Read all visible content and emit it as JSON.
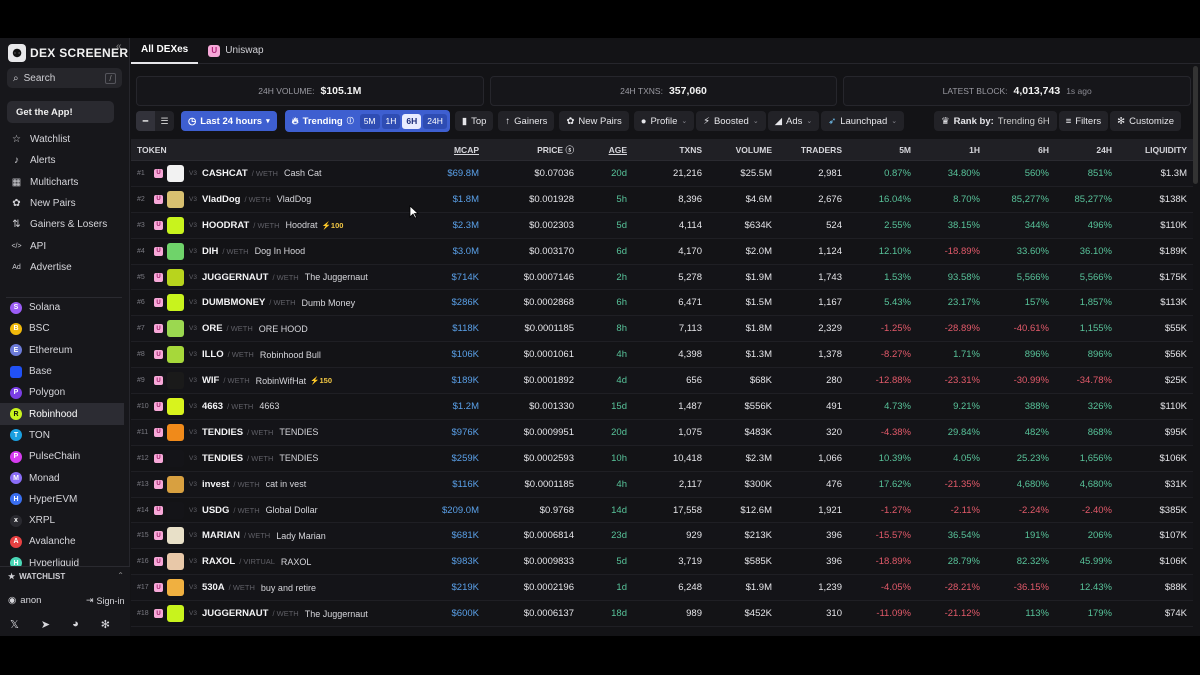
{
  "brand": {
    "logo_text": "DEX SCREENER"
  },
  "sidebar": {
    "search_label": "Search",
    "search_shortcut": "/",
    "get_app_label": "Get the App!",
    "nav": [
      {
        "label": "Watchlist",
        "icon": "star-icon"
      },
      {
        "label": "Alerts",
        "icon": "bell-icon"
      },
      {
        "label": "Multicharts",
        "icon": "grid-icon"
      },
      {
        "label": "New Pairs",
        "icon": "sprout-icon"
      },
      {
        "label": "Gainers & Losers",
        "icon": "trend-icon"
      },
      {
        "label": "API",
        "icon": "code-icon"
      },
      {
        "label": "Advertise",
        "icon": "ad-icon"
      }
    ],
    "chains": [
      {
        "label": "Solana",
        "color": "#9b5cf6",
        "glyph": "S"
      },
      {
        "label": "BSC",
        "color": "#f0b90b",
        "glyph": "B"
      },
      {
        "label": "Ethereum",
        "color": "#6c7bd8",
        "glyph": "E"
      },
      {
        "label": "Base",
        "color": "#2151f5",
        "glyph": ""
      },
      {
        "label": "Polygon",
        "color": "#7b3fe4",
        "glyph": "P"
      },
      {
        "label": "Robinhood",
        "color": "#c8f31d",
        "glyph": "R"
      },
      {
        "label": "TON",
        "color": "#1a9fe0",
        "glyph": "T"
      },
      {
        "label": "PulseChain",
        "color": "#d63cf0",
        "glyph": "P"
      },
      {
        "label": "Monad",
        "color": "#8a6df7",
        "glyph": "M"
      },
      {
        "label": "HyperEVM",
        "color": "#3a6ff0",
        "glyph": "H"
      },
      {
        "label": "XRPL",
        "color": "#2a2a30",
        "glyph": "x"
      },
      {
        "label": "Avalanche",
        "color": "#e84142",
        "glyph": "A"
      },
      {
        "label": "Hyperliquid",
        "color": "#4ad6b6",
        "glyph": "H"
      }
    ],
    "active_chain": "Robinhood",
    "watchlist_title": "WATCHLIST",
    "user": "anon",
    "sign_in": "Sign-in"
  },
  "tabs": [
    {
      "label": "All DEXes",
      "active": true
    },
    {
      "label": "Uniswap",
      "active": false
    }
  ],
  "stats": {
    "volume_label": "24H VOLUME:",
    "volume_value": "$105.1M",
    "txns_label": "24H TXNS:",
    "txns_value": "357,060",
    "block_label": "LATEST BLOCK:",
    "block_value": "4,013,743",
    "block_ago": "1s ago"
  },
  "filters": {
    "range_label": "Last 24 hours",
    "trending_label": "Trending",
    "trending_options": [
      "5M",
      "1H",
      "6H",
      "24H"
    ],
    "trending_selected": "6H",
    "top_label": "Top",
    "gainers_label": "Gainers",
    "new_pairs_label": "New Pairs",
    "profile_label": "Profile",
    "boosted_label": "Boosted",
    "ads_label": "Ads",
    "launchpad_label": "Launchpad",
    "rank_by_label": "Rank by:",
    "rank_by_value": "Trending 6H",
    "filters_label": "Filters",
    "customize_label": "Customize"
  },
  "table": {
    "columns": [
      "TOKEN",
      "MCAP",
      "PRICE",
      "AGE",
      "TXNS",
      "VOLUME",
      "TRADERS",
      "5M",
      "1H",
      "6H",
      "24H",
      "LIQUIDITY"
    ],
    "rows": [
      {
        "rank": "#1",
        "sym": "CASHCAT",
        "quote": "WETH",
        "name": "Cash Cat",
        "boost": "",
        "av": "#f2f2f2",
        "mcap": "$69.8M",
        "price": "$0.07036",
        "age": "20d",
        "txns": "21,216",
        "vol": "$25.5M",
        "traders": "2,981",
        "m5": "0.87%",
        "h1": "34.80%",
        "h6": "560%",
        "h24": "851%",
        "liq": "$1.3M"
      },
      {
        "rank": "#2",
        "sym": "VladDog",
        "quote": "WETH",
        "name": "VladDog",
        "boost": "",
        "av": "#d8c070",
        "mcap": "$1.8M",
        "price": "$0.001928",
        "age": "5h",
        "txns": "8,396",
        "vol": "$4.6M",
        "traders": "2,676",
        "m5": "16.04%",
        "h1": "8.70%",
        "h6": "85,277%",
        "h24": "85,277%",
        "liq": "$138K"
      },
      {
        "rank": "#3",
        "sym": "HOODRAT",
        "quote": "WETH",
        "name": "Hoodrat",
        "boost": "⚡100",
        "av": "#c8f31d",
        "mcap": "$2.3M",
        "price": "$0.002303",
        "age": "5d",
        "txns": "4,114",
        "vol": "$634K",
        "traders": "524",
        "m5": "2.55%",
        "h1": "38.15%",
        "h6": "344%",
        "h24": "496%",
        "liq": "$110K"
      },
      {
        "rank": "#4",
        "sym": "DIH",
        "quote": "WETH",
        "name": "Dog In Hood",
        "boost": "",
        "av": "#6fd36a",
        "mcap": "$3.0M",
        "price": "$0.003170",
        "age": "6d",
        "txns": "4,170",
        "vol": "$2.0M",
        "traders": "1,124",
        "m5": "12.10%",
        "h1": "-18.89%",
        "h6": "33.60%",
        "h24": "36.10%",
        "liq": "$189K"
      },
      {
        "rank": "#5",
        "sym": "JUGGERNAUT",
        "quote": "WETH",
        "name": "The Juggernaut",
        "boost": "",
        "av": "#b8d41d",
        "mcap": "$714K",
        "price": "$0.0007146",
        "age": "2h",
        "txns": "5,278",
        "vol": "$1.9M",
        "traders": "1,743",
        "m5": "1.53%",
        "h1": "93.58%",
        "h6": "5,566%",
        "h24": "5,566%",
        "liq": "$175K"
      },
      {
        "rank": "#6",
        "sym": "DUMBMONEY",
        "quote": "WETH",
        "name": "Dumb Money",
        "boost": "",
        "av": "#c8f31d",
        "mcap": "$286K",
        "price": "$0.0002868",
        "age": "6h",
        "txns": "6,471",
        "vol": "$1.5M",
        "traders": "1,167",
        "m5": "5.43%",
        "h1": "23.17%",
        "h6": "157%",
        "h24": "1,857%",
        "liq": "$113K"
      },
      {
        "rank": "#7",
        "sym": "ORE",
        "quote": "WETH",
        "name": "ORE HOOD",
        "boost": "",
        "av": "#9bd850",
        "mcap": "$118K",
        "price": "$0.0001185",
        "age": "8h",
        "txns": "7,113",
        "vol": "$1.8M",
        "traders": "2,329",
        "m5": "-1.25%",
        "h1": "-28.89%",
        "h6": "-40.61%",
        "h24": "1,155%",
        "liq": "$55K"
      },
      {
        "rank": "#8",
        "sym": "ILLO",
        "quote": "WETH",
        "name": "Robinhood Bull",
        "boost": "",
        "av": "#a6d83a",
        "mcap": "$106K",
        "price": "$0.0001061",
        "age": "4h",
        "txns": "4,398",
        "vol": "$1.3M",
        "traders": "1,378",
        "m5": "-8.27%",
        "h1": "1.71%",
        "h6": "896%",
        "h24": "896%",
        "liq": "$56K"
      },
      {
        "rank": "#9",
        "sym": "WIF",
        "quote": "WETH",
        "name": "RobinWifHat",
        "boost": "⚡150",
        "av": "#1a1a1a",
        "mcap": "$189K",
        "price": "$0.0001892",
        "age": "4d",
        "txns": "656",
        "vol": "$68K",
        "traders": "280",
        "m5": "-12.88%",
        "h1": "-23.31%",
        "h6": "-30.99%",
        "h24": "-34.78%",
        "liq": "$25K"
      },
      {
        "rank": "#10",
        "sym": "4663",
        "quote": "WETH",
        "name": "4663",
        "boost": "",
        "av": "#d8f31d",
        "mcap": "$1.2M",
        "price": "$0.001330",
        "age": "15d",
        "txns": "1,487",
        "vol": "$556K",
        "traders": "491",
        "m5": "4.73%",
        "h1": "9.21%",
        "h6": "388%",
        "h24": "326%",
        "liq": "$110K"
      },
      {
        "rank": "#11",
        "sym": "TENDIES",
        "quote": "WETH",
        "name": "TENDIES",
        "boost": "",
        "av": "#f08a1a",
        "mcap": "$976K",
        "price": "$0.0009951",
        "age": "20d",
        "txns": "1,075",
        "vol": "$483K",
        "traders": "320",
        "m5": "-4.38%",
        "h1": "29.84%",
        "h6": "482%",
        "h24": "868%",
        "liq": "$95K"
      },
      {
        "rank": "#12",
        "sym": "TENDIES",
        "quote": "WETH",
        "name": "TENDIES",
        "boost": "",
        "av": "#141418",
        "mcap": "$259K",
        "price": "$0.0002593",
        "age": "10h",
        "txns": "10,418",
        "vol": "$2.3M",
        "traders": "1,066",
        "m5": "10.39%",
        "h1": "4.05%",
        "h6": "25.23%",
        "h24": "1,656%",
        "liq": "$106K"
      },
      {
        "rank": "#13",
        "sym": "invest",
        "quote": "WETH",
        "name": "cat in vest",
        "boost": "",
        "av": "#d8a040",
        "mcap": "$116K",
        "price": "$0.0001185",
        "age": "4h",
        "txns": "2,117",
        "vol": "$300K",
        "traders": "476",
        "m5": "17.62%",
        "h1": "-21.35%",
        "h6": "4,680%",
        "h24": "4,680%",
        "liq": "$31K"
      },
      {
        "rank": "#14",
        "sym": "USDG",
        "quote": "WETH",
        "name": "Global Dollar",
        "boost": "",
        "av": "#141418",
        "mcap": "$209.0M",
        "price": "$0.9768",
        "age": "14d",
        "txns": "17,558",
        "vol": "$12.6M",
        "traders": "1,921",
        "m5": "-1.27%",
        "h1": "-2.11%",
        "h6": "-2.24%",
        "h24": "-2.40%",
        "liq": "$385K"
      },
      {
        "rank": "#15",
        "sym": "MARIAN",
        "quote": "WETH",
        "name": "Lady Marian",
        "boost": "",
        "av": "#e8e0c8",
        "mcap": "$681K",
        "price": "$0.0006814",
        "age": "23d",
        "txns": "929",
        "vol": "$213K",
        "traders": "396",
        "m5": "-15.57%",
        "h1": "36.54%",
        "h6": "191%",
        "h24": "206%",
        "liq": "$107K"
      },
      {
        "rank": "#16",
        "sym": "RAXOL",
        "quote": "VIRTUAL",
        "name": "RAXOL",
        "boost": "",
        "av": "#e8c8a8",
        "mcap": "$983K",
        "price": "$0.0009833",
        "age": "5d",
        "txns": "3,719",
        "vol": "$585K",
        "traders": "396",
        "m5": "-18.89%",
        "h1": "28.79%",
        "h6": "82.32%",
        "h24": "45.99%",
        "liq": "$106K"
      },
      {
        "rank": "#17",
        "sym": "530A",
        "quote": "WETH",
        "name": "buy and retire",
        "boost": "",
        "av": "#f0b040",
        "mcap": "$219K",
        "price": "$0.0002196",
        "age": "1d",
        "txns": "6,248",
        "vol": "$1.9M",
        "traders": "1,239",
        "m5": "-4.05%",
        "h1": "-28.21%",
        "h6": "-36.15%",
        "h24": "12.43%",
        "liq": "$88K"
      },
      {
        "rank": "#18",
        "sym": "JUGGERNAUT",
        "quote": "WETH",
        "name": "The Juggernaut",
        "boost": "",
        "av": "#c8f31d",
        "mcap": "$600K",
        "price": "$0.0006137",
        "age": "18d",
        "txns": "989",
        "vol": "$452K",
        "traders": "310",
        "m5": "-11.09%",
        "h1": "-21.12%",
        "h6": "113%",
        "h24": "179%",
        "liq": "$74K"
      }
    ]
  }
}
